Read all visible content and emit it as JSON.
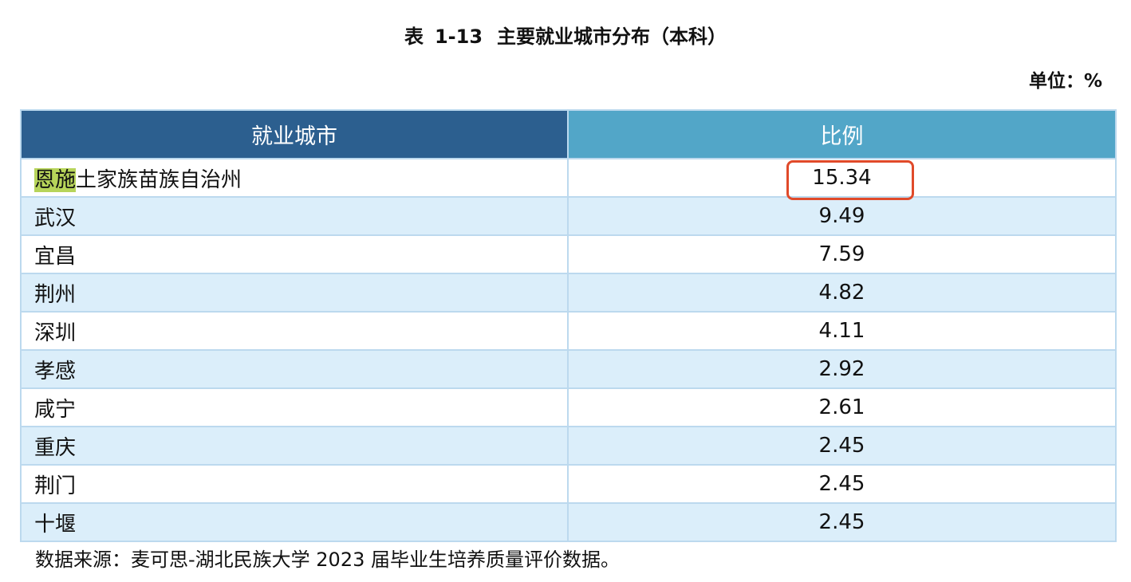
{
  "caption": {
    "prefix": "表",
    "number": "1-13",
    "title": "主要就业城市分布（本科）"
  },
  "unit": "单位：%",
  "table": {
    "headers": [
      "就业城市",
      "比例"
    ],
    "rows": [
      {
        "city_highlight": "恩施",
        "city_rest": "土家族苗族自治州",
        "value": "15.34"
      },
      {
        "city": "武汉",
        "value": "9.49"
      },
      {
        "city": "宜昌",
        "value": "7.59"
      },
      {
        "city": "荆州",
        "value": "4.82"
      },
      {
        "city": "深圳",
        "value": "4.11"
      },
      {
        "city": "孝感",
        "value": "2.92"
      },
      {
        "city": "咸宁",
        "value": "2.61"
      },
      {
        "city": "重庆",
        "value": "2.45"
      },
      {
        "city": "荆门",
        "value": "2.45"
      },
      {
        "city": "十堰",
        "value": "2.45"
      }
    ]
  },
  "source": "数据来源：麦可思-湖北民族大学 2023 届毕业生培养质量评价数据。",
  "colors": {
    "header_dark": "#2c5f8f",
    "header_light": "#52a6c8",
    "row_alt": "#dbeefa",
    "highlight": "#b7d45a",
    "annotation_box": "#e04a2a"
  }
}
